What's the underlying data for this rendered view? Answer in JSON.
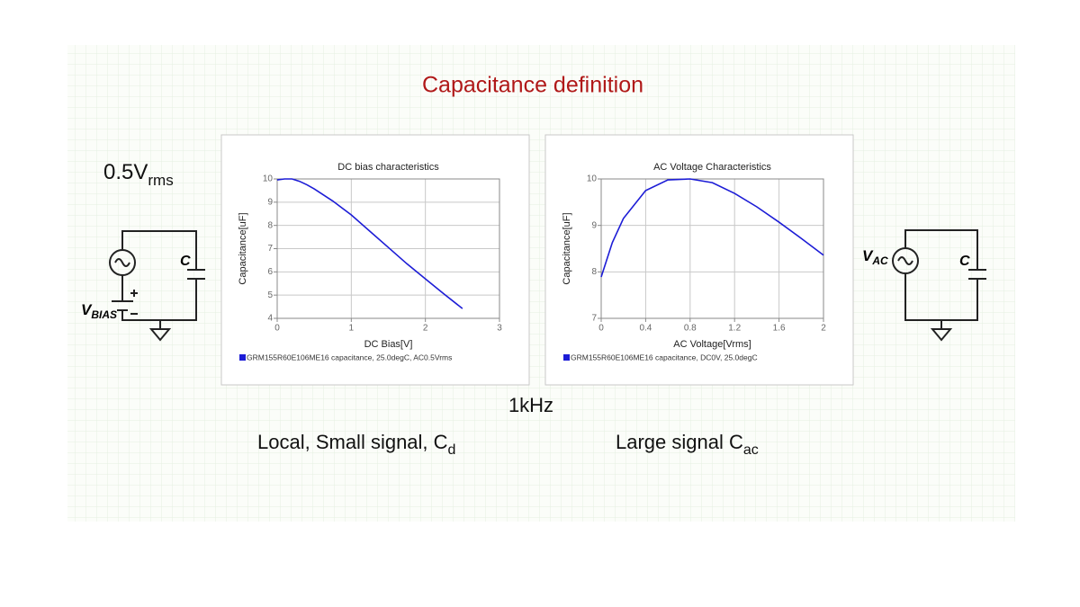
{
  "slide": {
    "title": "Capacitance definition",
    "frequency": "1kHz",
    "left_caption": {
      "main": "Local, Small signal, C",
      "sub": "d"
    },
    "right_caption": {
      "main": "Large signal C",
      "sub": "ac"
    },
    "left_amplitude": {
      "main": "0.5V",
      "sub": "rms"
    },
    "left_circuit": {
      "capacitor": "C",
      "source": {
        "main": "V",
        "sub": "BIAS"
      }
    },
    "right_circuit": {
      "capacitor": "C",
      "source": {
        "main": "V",
        "sub": "AC"
      }
    }
  },
  "chart_data": [
    {
      "type": "line",
      "title": "DC bias characteristics",
      "x_label": "DC Bias[V]",
      "y_label": "Capacitance[uF]",
      "x": [
        0,
        0.1,
        0.2,
        0.3,
        0.4,
        0.5,
        0.75,
        1,
        1.25,
        1.5,
        1.75,
        2,
        2.25,
        2.5
      ],
      "series": [
        {
          "name": "GRM155R60E106ME16 capacitance, 25.0degC, AC0.5Vrms",
          "color": "#1c1cd6",
          "values": [
            9.96,
            10,
            10,
            9.9,
            9.75,
            9.57,
            9.05,
            8.45,
            7.75,
            7.05,
            6.35,
            5.7,
            5.05,
            4.42
          ]
        }
      ],
      "xlim": [
        0,
        3
      ],
      "xticks": [
        0,
        1,
        2,
        3
      ],
      "ylim": [
        4,
        10
      ],
      "yticks": [
        4,
        5,
        6,
        7,
        8,
        9,
        10
      ],
      "grid": true
    },
    {
      "type": "line",
      "title": "AC Voltage Characteristics",
      "x_label": "AC Voltage[Vrms]",
      "y_label": "Capacitance[uF]",
      "x": [
        0,
        0.1,
        0.2,
        0.4,
        0.6,
        0.8,
        1.0,
        1.2,
        1.4,
        1.6,
        1.8,
        2.0
      ],
      "series": [
        {
          "name": "GRM155R60E106ME16 capacitance, DC0V, 25.0degC",
          "color": "#1c1cd6",
          "values": [
            7.89,
            8.63,
            9.15,
            9.75,
            9.98,
            10,
            9.92,
            9.69,
            9.4,
            9.07,
            8.72,
            8.36
          ]
        }
      ],
      "xlim": [
        0,
        2
      ],
      "xticks": [
        0,
        0.4,
        0.8,
        1.2,
        1.6,
        2
      ],
      "ylim": [
        7,
        10
      ],
      "yticks": [
        7,
        8,
        9,
        10
      ],
      "grid": true
    }
  ]
}
